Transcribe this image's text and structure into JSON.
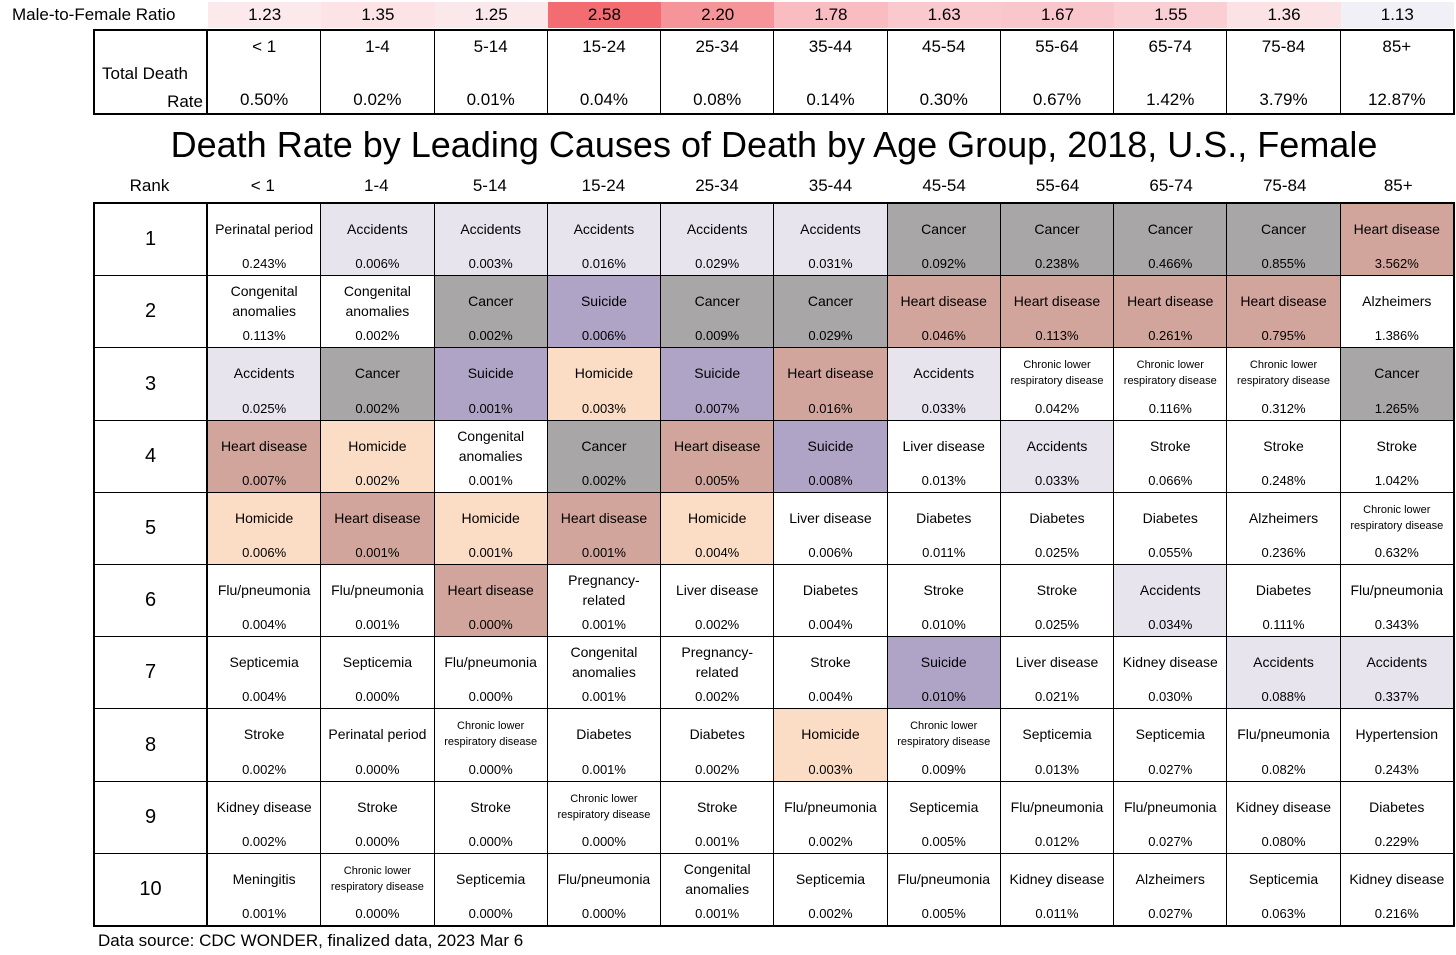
{
  "ratio_label": "Male-to-Female Ratio",
  "ratios": [
    {
      "value": "1.23",
      "color": "#fbe9ec"
    },
    {
      "value": "1.35",
      "color": "#fbe3e6"
    },
    {
      "value": "1.25",
      "color": "#fbe8eb"
    },
    {
      "value": "2.58",
      "color": "#f26c72"
    },
    {
      "value": "2.20",
      "color": "#f5959a"
    },
    {
      "value": "1.78",
      "color": "#f8bcc1"
    },
    {
      "value": "1.63",
      "color": "#f9c9ce"
    },
    {
      "value": "1.67",
      "color": "#f9c6cb"
    },
    {
      "value": "1.55",
      "color": "#facfd3"
    },
    {
      "value": "1.36",
      "color": "#fbe2e5"
    },
    {
      "value": "1.13",
      "color": "#f2f0f7"
    }
  ],
  "total_label_1": "Total Death",
  "total_label_2": "Rate",
  "age_groups": [
    "< 1",
    "1-4",
    "5-14",
    "15-24",
    "25-34",
    "35-44",
    "45-54",
    "55-64",
    "65-74",
    "75-84",
    "85+"
  ],
  "total_rates": [
    "0.50%",
    "0.02%",
    "0.01%",
    "0.04%",
    "0.08%",
    "0.14%",
    "0.30%",
    "0.67%",
    "1.42%",
    "3.79%",
    "12.87%"
  ],
  "title": "Death Rate by Leading Causes of Death by Age Group, 2018, U.S., Female",
  "rank_header": "Rank",
  "rows": [
    {
      "rank": "1",
      "cells": [
        {
          "cause": "Perinatal period",
          "rate": "0.243%",
          "cat": "none"
        },
        {
          "cause": "Accidents",
          "rate": "0.006%",
          "cat": "accidents"
        },
        {
          "cause": "Accidents",
          "rate": "0.003%",
          "cat": "accidents"
        },
        {
          "cause": "Accidents",
          "rate": "0.016%",
          "cat": "accidents"
        },
        {
          "cause": "Accidents",
          "rate": "0.029%",
          "cat": "accidents"
        },
        {
          "cause": "Accidents",
          "rate": "0.031%",
          "cat": "accidents"
        },
        {
          "cause": "Cancer",
          "rate": "0.092%",
          "cat": "cancer"
        },
        {
          "cause": "Cancer",
          "rate": "0.238%",
          "cat": "cancer"
        },
        {
          "cause": "Cancer",
          "rate": "0.466%",
          "cat": "cancer"
        },
        {
          "cause": "Cancer",
          "rate": "0.855%",
          "cat": "cancer"
        },
        {
          "cause": "Heart disease",
          "rate": "3.562%",
          "cat": "heart"
        }
      ]
    },
    {
      "rank": "2",
      "cells": [
        {
          "cause": "Congenital\nanomalies",
          "rate": "0.113%",
          "cat": "none"
        },
        {
          "cause": "Congenital\nanomalies",
          "rate": "0.002%",
          "cat": "none"
        },
        {
          "cause": "Cancer",
          "rate": "0.002%",
          "cat": "cancer"
        },
        {
          "cause": "Suicide",
          "rate": "0.006%",
          "cat": "suicide"
        },
        {
          "cause": "Cancer",
          "rate": "0.009%",
          "cat": "cancer"
        },
        {
          "cause": "Cancer",
          "rate": "0.029%",
          "cat": "cancer"
        },
        {
          "cause": "Heart disease",
          "rate": "0.046%",
          "cat": "heart"
        },
        {
          "cause": "Heart disease",
          "rate": "0.113%",
          "cat": "heart"
        },
        {
          "cause": "Heart disease",
          "rate": "0.261%",
          "cat": "heart"
        },
        {
          "cause": "Heart disease",
          "rate": "0.795%",
          "cat": "heart"
        },
        {
          "cause": "Alzheimers",
          "rate": "1.386%",
          "cat": "none"
        }
      ]
    },
    {
      "rank": "3",
      "cells": [
        {
          "cause": "Accidents",
          "rate": "0.025%",
          "cat": "accidents"
        },
        {
          "cause": "Cancer",
          "rate": "0.002%",
          "cat": "cancer"
        },
        {
          "cause": "Suicide",
          "rate": "0.001%",
          "cat": "suicide"
        },
        {
          "cause": "Homicide",
          "rate": "0.003%",
          "cat": "homicide"
        },
        {
          "cause": "Suicide",
          "rate": "0.007%",
          "cat": "suicide"
        },
        {
          "cause": "Heart disease",
          "rate": "0.016%",
          "cat": "heart"
        },
        {
          "cause": "Accidents",
          "rate": "0.033%",
          "cat": "accidents"
        },
        {
          "cause": "Chronic lower\nrespiratory disease",
          "rate": "0.042%",
          "cat": "none",
          "small": true
        },
        {
          "cause": "Chronic lower\nrespiratory disease",
          "rate": "0.116%",
          "cat": "none",
          "small": true
        },
        {
          "cause": "Chronic lower\nrespiratory disease",
          "rate": "0.312%",
          "cat": "none",
          "small": true
        },
        {
          "cause": "Cancer",
          "rate": "1.265%",
          "cat": "cancer"
        }
      ]
    },
    {
      "rank": "4",
      "cells": [
        {
          "cause": "Heart disease",
          "rate": "0.007%",
          "cat": "heart"
        },
        {
          "cause": "Homicide",
          "rate": "0.002%",
          "cat": "homicide"
        },
        {
          "cause": "Congenital\nanomalies",
          "rate": "0.001%",
          "cat": "none"
        },
        {
          "cause": "Cancer",
          "rate": "0.002%",
          "cat": "cancer"
        },
        {
          "cause": "Heart disease",
          "rate": "0.005%",
          "cat": "heart"
        },
        {
          "cause": "Suicide",
          "rate": "0.008%",
          "cat": "suicide"
        },
        {
          "cause": "Liver disease",
          "rate": "0.013%",
          "cat": "none"
        },
        {
          "cause": "Accidents",
          "rate": "0.033%",
          "cat": "accidents"
        },
        {
          "cause": "Stroke",
          "rate": "0.066%",
          "cat": "none"
        },
        {
          "cause": "Stroke",
          "rate": "0.248%",
          "cat": "none"
        },
        {
          "cause": "Stroke",
          "rate": "1.042%",
          "cat": "none"
        }
      ]
    },
    {
      "rank": "5",
      "cells": [
        {
          "cause": "Homicide",
          "rate": "0.006%",
          "cat": "homicide"
        },
        {
          "cause": "Heart disease",
          "rate": "0.001%",
          "cat": "heart"
        },
        {
          "cause": "Homicide",
          "rate": "0.001%",
          "cat": "homicide"
        },
        {
          "cause": "Heart disease",
          "rate": "0.001%",
          "cat": "heart"
        },
        {
          "cause": "Homicide",
          "rate": "0.004%",
          "cat": "homicide"
        },
        {
          "cause": "Liver disease",
          "rate": "0.006%",
          "cat": "none"
        },
        {
          "cause": "Diabetes",
          "rate": "0.011%",
          "cat": "none"
        },
        {
          "cause": "Diabetes",
          "rate": "0.025%",
          "cat": "none"
        },
        {
          "cause": "Diabetes",
          "rate": "0.055%",
          "cat": "none"
        },
        {
          "cause": "Alzheimers",
          "rate": "0.236%",
          "cat": "none"
        },
        {
          "cause": "Chronic lower\nrespiratory disease",
          "rate": "0.632%",
          "cat": "none",
          "small": true
        }
      ]
    },
    {
      "rank": "6",
      "cells": [
        {
          "cause": "Flu/pneumonia",
          "rate": "0.004%",
          "cat": "none"
        },
        {
          "cause": "Flu/pneumonia",
          "rate": "0.001%",
          "cat": "none"
        },
        {
          "cause": "Heart disease",
          "rate": "0.000%",
          "cat": "heart"
        },
        {
          "cause": "Pregnancy-\nrelated",
          "rate": "0.001%",
          "cat": "none"
        },
        {
          "cause": "Liver disease",
          "rate": "0.002%",
          "cat": "none"
        },
        {
          "cause": "Diabetes",
          "rate": "0.004%",
          "cat": "none"
        },
        {
          "cause": "Stroke",
          "rate": "0.010%",
          "cat": "none"
        },
        {
          "cause": "Stroke",
          "rate": "0.025%",
          "cat": "none"
        },
        {
          "cause": "Accidents",
          "rate": "0.034%",
          "cat": "accidents"
        },
        {
          "cause": "Diabetes",
          "rate": "0.111%",
          "cat": "none"
        },
        {
          "cause": "Flu/pneumonia",
          "rate": "0.343%",
          "cat": "none"
        }
      ]
    },
    {
      "rank": "7",
      "cells": [
        {
          "cause": "Septicemia",
          "rate": "0.004%",
          "cat": "none"
        },
        {
          "cause": "Septicemia",
          "rate": "0.000%",
          "cat": "none"
        },
        {
          "cause": "Flu/pneumonia",
          "rate": "0.000%",
          "cat": "none"
        },
        {
          "cause": "Congenital\nanomalies",
          "rate": "0.001%",
          "cat": "none"
        },
        {
          "cause": "Pregnancy-\nrelated",
          "rate": "0.002%",
          "cat": "none"
        },
        {
          "cause": "Stroke",
          "rate": "0.004%",
          "cat": "none"
        },
        {
          "cause": "Suicide",
          "rate": "0.010%",
          "cat": "suicide"
        },
        {
          "cause": "Liver disease",
          "rate": "0.021%",
          "cat": "none"
        },
        {
          "cause": "Kidney disease",
          "rate": "0.030%",
          "cat": "none"
        },
        {
          "cause": "Accidents",
          "rate": "0.088%",
          "cat": "accidents"
        },
        {
          "cause": "Accidents",
          "rate": "0.337%",
          "cat": "accidents"
        }
      ]
    },
    {
      "rank": "8",
      "cells": [
        {
          "cause": "Stroke",
          "rate": "0.002%",
          "cat": "none"
        },
        {
          "cause": "Perinatal period",
          "rate": "0.000%",
          "cat": "none"
        },
        {
          "cause": "Chronic lower\nrespiratory disease",
          "rate": "0.000%",
          "cat": "none",
          "small": true
        },
        {
          "cause": "Diabetes",
          "rate": "0.001%",
          "cat": "none"
        },
        {
          "cause": "Diabetes",
          "rate": "0.002%",
          "cat": "none"
        },
        {
          "cause": "Homicide",
          "rate": "0.003%",
          "cat": "homicide"
        },
        {
          "cause": "Chronic lower\nrespiratory disease",
          "rate": "0.009%",
          "cat": "none",
          "small": true
        },
        {
          "cause": "Septicemia",
          "rate": "0.013%",
          "cat": "none"
        },
        {
          "cause": "Septicemia",
          "rate": "0.027%",
          "cat": "none"
        },
        {
          "cause": "Flu/pneumonia",
          "rate": "0.082%",
          "cat": "none"
        },
        {
          "cause": "Hypertension",
          "rate": "0.243%",
          "cat": "none"
        }
      ]
    },
    {
      "rank": "9",
      "cells": [
        {
          "cause": "Kidney disease",
          "rate": "0.002%",
          "cat": "none"
        },
        {
          "cause": "Stroke",
          "rate": "0.000%",
          "cat": "none"
        },
        {
          "cause": "Stroke",
          "rate": "0.000%",
          "cat": "none"
        },
        {
          "cause": "Chronic lower\nrespiratory disease",
          "rate": "0.000%",
          "cat": "none",
          "small": true
        },
        {
          "cause": "Stroke",
          "rate": "0.001%",
          "cat": "none"
        },
        {
          "cause": "Flu/pneumonia",
          "rate": "0.002%",
          "cat": "none"
        },
        {
          "cause": "Septicemia",
          "rate": "0.005%",
          "cat": "none"
        },
        {
          "cause": "Flu/pneumonia",
          "rate": "0.012%",
          "cat": "none"
        },
        {
          "cause": "Flu/pneumonia",
          "rate": "0.027%",
          "cat": "none"
        },
        {
          "cause": "Kidney disease",
          "rate": "0.080%",
          "cat": "none"
        },
        {
          "cause": "Diabetes",
          "rate": "0.229%",
          "cat": "none"
        }
      ]
    },
    {
      "rank": "10",
      "cells": [
        {
          "cause": "Meningitis",
          "rate": "0.001%",
          "cat": "none"
        },
        {
          "cause": "Chronic lower\nrespiratory disease",
          "rate": "0.000%",
          "cat": "none",
          "small": true
        },
        {
          "cause": "Septicemia",
          "rate": "0.000%",
          "cat": "none"
        },
        {
          "cause": "Flu/pneumonia",
          "rate": "0.000%",
          "cat": "none"
        },
        {
          "cause": "Congenital\nanomalies",
          "rate": "0.001%",
          "cat": "none"
        },
        {
          "cause": "Septicemia",
          "rate": "0.002%",
          "cat": "none"
        },
        {
          "cause": "Flu/pneumonia",
          "rate": "0.005%",
          "cat": "none"
        },
        {
          "cause": "Kidney disease",
          "rate": "0.011%",
          "cat": "none"
        },
        {
          "cause": "Alzheimers",
          "rate": "0.027%",
          "cat": "none"
        },
        {
          "cause": "Septicemia",
          "rate": "0.063%",
          "cat": "none"
        },
        {
          "cause": "Kidney disease",
          "rate": "0.216%",
          "cat": "none"
        }
      ]
    }
  ],
  "source": "Data source: CDC WONDER, finalized data, 2023 Mar 6"
}
